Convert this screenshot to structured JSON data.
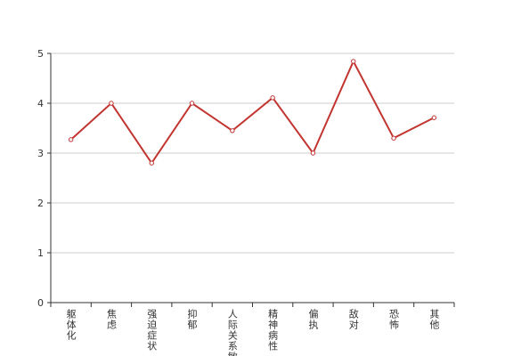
{
  "chart_data": {
    "type": "line",
    "categories": [
      "躯体化",
      "焦虑",
      "强迫症状",
      "抑郁",
      "人际关系敏感",
      "精神病性",
      "偏执",
      "敌对",
      "恐怖",
      "其他"
    ],
    "values": [
      3.27,
      4.0,
      2.8,
      4.0,
      3.45,
      4.11,
      3.0,
      4.84,
      3.3,
      3.71
    ],
    "color": "#c23531",
    "ylim": [
      0,
      5
    ],
    "yticks": [
      0,
      1,
      2,
      3,
      4,
      5
    ],
    "grid": true
  }
}
